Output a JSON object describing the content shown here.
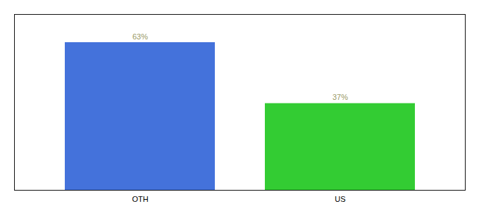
{
  "chart_data": {
    "type": "bar",
    "categories": [
      "OTH",
      "US"
    ],
    "values": [
      63,
      37
    ],
    "value_labels": [
      "63%",
      "37%"
    ],
    "colors": [
      "#4472db",
      "#33cc33"
    ],
    "ylim": [
      0,
      75
    ],
    "data_labels": true,
    "tick_labels": "x"
  }
}
